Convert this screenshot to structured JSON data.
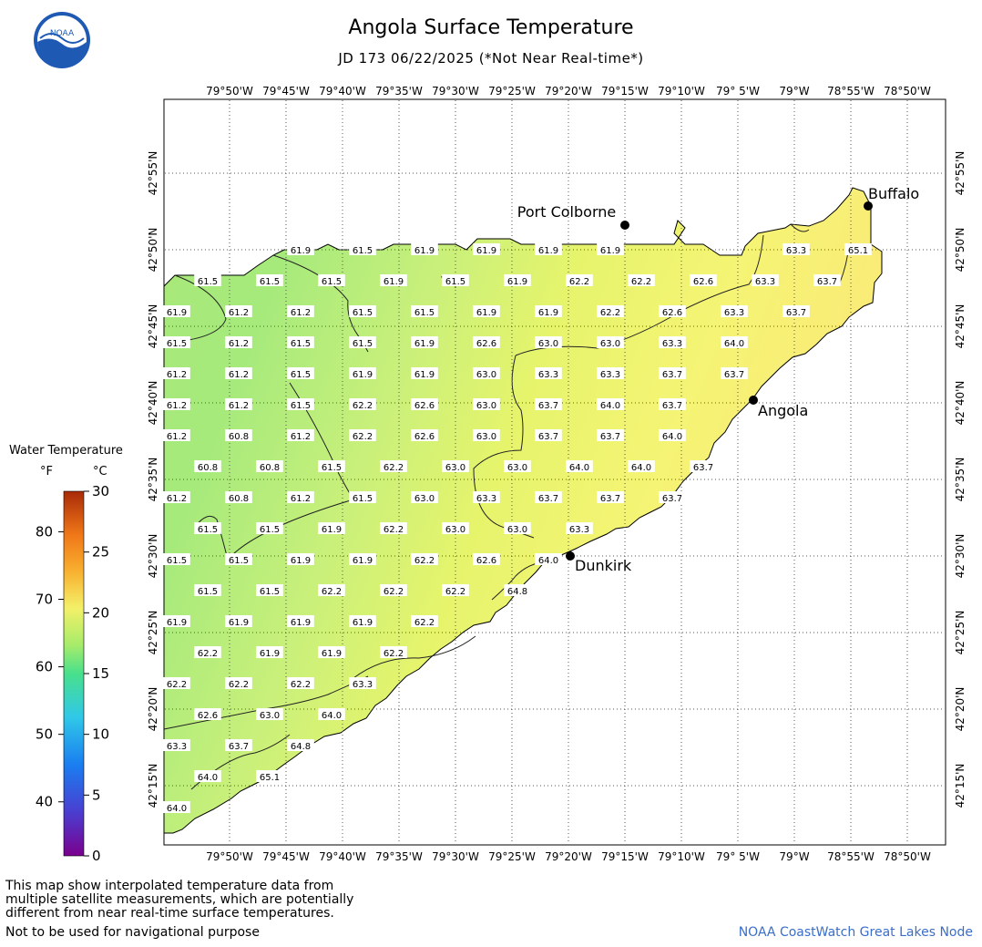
{
  "header": {
    "title": "Angola Surface Temperature",
    "subtitle": "JD 173 06/22/2025 (*Not Near Real-time*)",
    "logo_text": "NOAA"
  },
  "map": {
    "longitude_labels": [
      "79°50'W",
      "79°45'W",
      "79°40'W",
      "79°35'W",
      "79°30'W",
      "79°25'W",
      "79°20'W",
      "79°15'W",
      "79°10'W",
      "79° 5'W",
      "79°W",
      "78°55'W",
      "78°50'W"
    ],
    "latitude_labels": [
      "42°55'N",
      "42°50'N",
      "42°45'N",
      "42°40'N",
      "42°35'N",
      "42°30'N",
      "42°25'N",
      "42°20'N",
      "42°15'N"
    ],
    "cities": [
      {
        "name": "Port Colborne"
      },
      {
        "name": "Buffalo"
      },
      {
        "name": "Angola"
      },
      {
        "name": "Dunkirk"
      }
    ],
    "temperature_rows": [
      [
        "61.9",
        "61.5",
        "61.9",
        "61.9",
        "61.9",
        "61.9"
      ],
      [
        "61.5",
        "61.5",
        "61.5",
        "61.9",
        "61.5",
        "61.9",
        "62.2",
        "62.2",
        "62.6",
        "63.3",
        "63.7"
      ],
      [
        "61.9",
        "61.2",
        "61.2",
        "61.5",
        "61.5",
        "61.9",
        "61.9",
        "62.2",
        "62.6",
        "63.3",
        "63.7"
      ],
      [
        "61.5",
        "61.2",
        "61.5",
        "61.5",
        "61.9",
        "62.6",
        "63.0",
        "63.0",
        "63.3",
        "64.0"
      ],
      [
        "61.2",
        "61.2",
        "61.5",
        "61.9",
        "61.9",
        "63.0",
        "63.3",
        "63.3",
        "63.7",
        "63.7"
      ],
      [
        "61.2",
        "61.2",
        "61.5",
        "62.2",
        "62.6",
        "63.0",
        "63.7",
        "64.0",
        "63.7"
      ],
      [
        "61.2",
        "60.8",
        "61.2",
        "62.2",
        "62.6",
        "63.0",
        "63.7",
        "63.7",
        "64.0"
      ],
      [
        "60.8",
        "60.8",
        "61.5",
        "62.2",
        "63.0",
        "63.0",
        "64.0",
        "64.0",
        "63.7"
      ],
      [
        "61.2",
        "60.8",
        "61.2",
        "61.5",
        "63.0",
        "63.3",
        "63.7",
        "63.7",
        "63.7"
      ],
      [
        "61.5",
        "61.5",
        "61.9",
        "62.2",
        "63.0",
        "63.0",
        "63.3"
      ],
      [
        "61.5",
        "61.5",
        "61.9",
        "61.9",
        "62.2",
        "62.6",
        "64.0"
      ],
      [
        "61.5",
        "61.5",
        "62.2",
        "62.2",
        "62.2",
        "64.8"
      ],
      [
        "61.9",
        "61.9",
        "61.9",
        "61.9",
        "62.2"
      ],
      [
        "62.2",
        "61.9",
        "61.9",
        "62.2"
      ],
      [
        "62.2",
        "62.2",
        "62.2",
        "63.3"
      ],
      [
        "62.6",
        "63.0",
        "64.0"
      ],
      [
        "63.3",
        "63.7",
        "64.8"
      ],
      [
        "64.0",
        "65.1"
      ],
      [
        "64.0"
      ]
    ],
    "extra_labels": [
      {
        "text": "65.1"
      },
      {
        "text": "63.3"
      }
    ]
  },
  "legend": {
    "title": "Water Temperature",
    "unit_f": "°F",
    "unit_c": "°C",
    "f_ticks": [
      "80",
      "70",
      "60",
      "50",
      "40"
    ],
    "c_ticks": [
      "30",
      "25",
      "20",
      "15",
      "10",
      "5",
      "0"
    ]
  },
  "footer": {
    "note_line1": "This map show interpolated temperature data from",
    "note_line2": "multiple satellite measurements, which are potentially",
    "note_line3": "different from near real-time surface temperatures.",
    "warning": "Not to be used for navigational purpose",
    "credit": "NOAA CoastWatch Great Lakes Node"
  }
}
